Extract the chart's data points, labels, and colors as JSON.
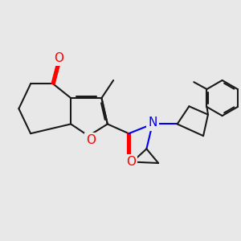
{
  "bg_color": "#e8e8e8",
  "bond_color": "#1a1a1a",
  "bond_width": 1.5,
  "atom_colors": {
    "O": "#ff0000",
    "N": "#0000ee"
  },
  "figsize": [
    3.0,
    3.0
  ],
  "dpi": 100
}
